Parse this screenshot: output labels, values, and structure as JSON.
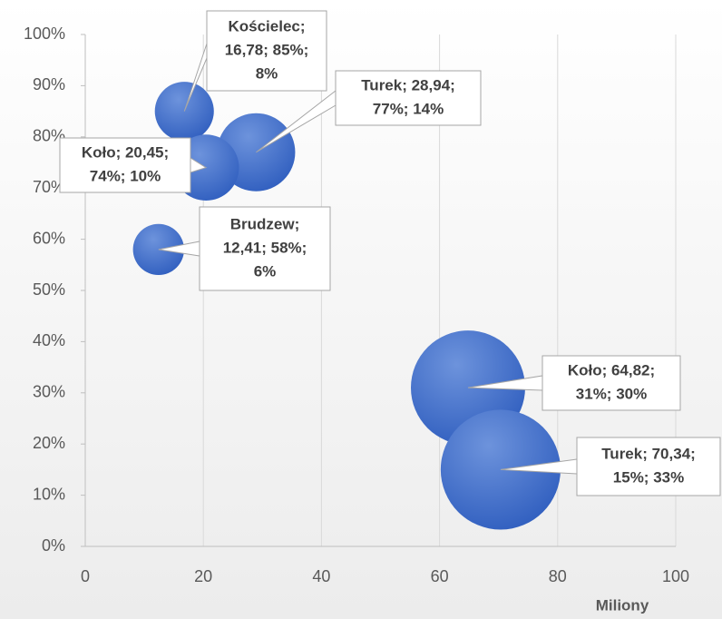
{
  "chart_data": {
    "type": "bubble",
    "x": [
      16.78,
      28.94,
      20.45,
      12.41,
      64.82,
      70.34
    ],
    "values": [
      85,
      77,
      74,
      58,
      31,
      15
    ],
    "sizes": [
      8,
      14,
      10,
      6,
      30,
      33
    ],
    "value_labels": [
      [
        "Kościelec;",
        "16,78;  85%;",
        "8%"
      ],
      [
        "Turek; 28,94;",
        "77%;  14%"
      ],
      [
        "Koło; 20,45;",
        "74%;  10%"
      ],
      [
        "Brudzew;",
        "12,41;  58%;",
        "6%"
      ],
      [
        "Koło; 64,82;",
        "31%;  30%"
      ],
      [
        "Turek; 70,34;",
        "15%;  33%"
      ]
    ],
    "color": "#3f6fcf",
    "x_label": "Miliony",
    "xlim": [
      0,
      100
    ],
    "xticks": [
      0,
      20,
      40,
      60,
      80,
      100
    ],
    "ylim": [
      0,
      100
    ],
    "yticks": [
      {
        "value": 0,
        "label": "0%"
      },
      {
        "value": 10,
        "label": "10%"
      },
      {
        "value": 20,
        "label": "20%"
      },
      {
        "value": 30,
        "label": "30%"
      },
      {
        "value": 40,
        "label": "40%"
      },
      {
        "value": 50,
        "label": "50%"
      },
      {
        "value": 60,
        "label": "60%"
      },
      {
        "value": 70,
        "label": "70%"
      },
      {
        "value": 80,
        "label": "80%"
      },
      {
        "value": 90,
        "label": "90%"
      },
      {
        "value": 100,
        "label": "100%"
      }
    ],
    "grid": "x"
  }
}
